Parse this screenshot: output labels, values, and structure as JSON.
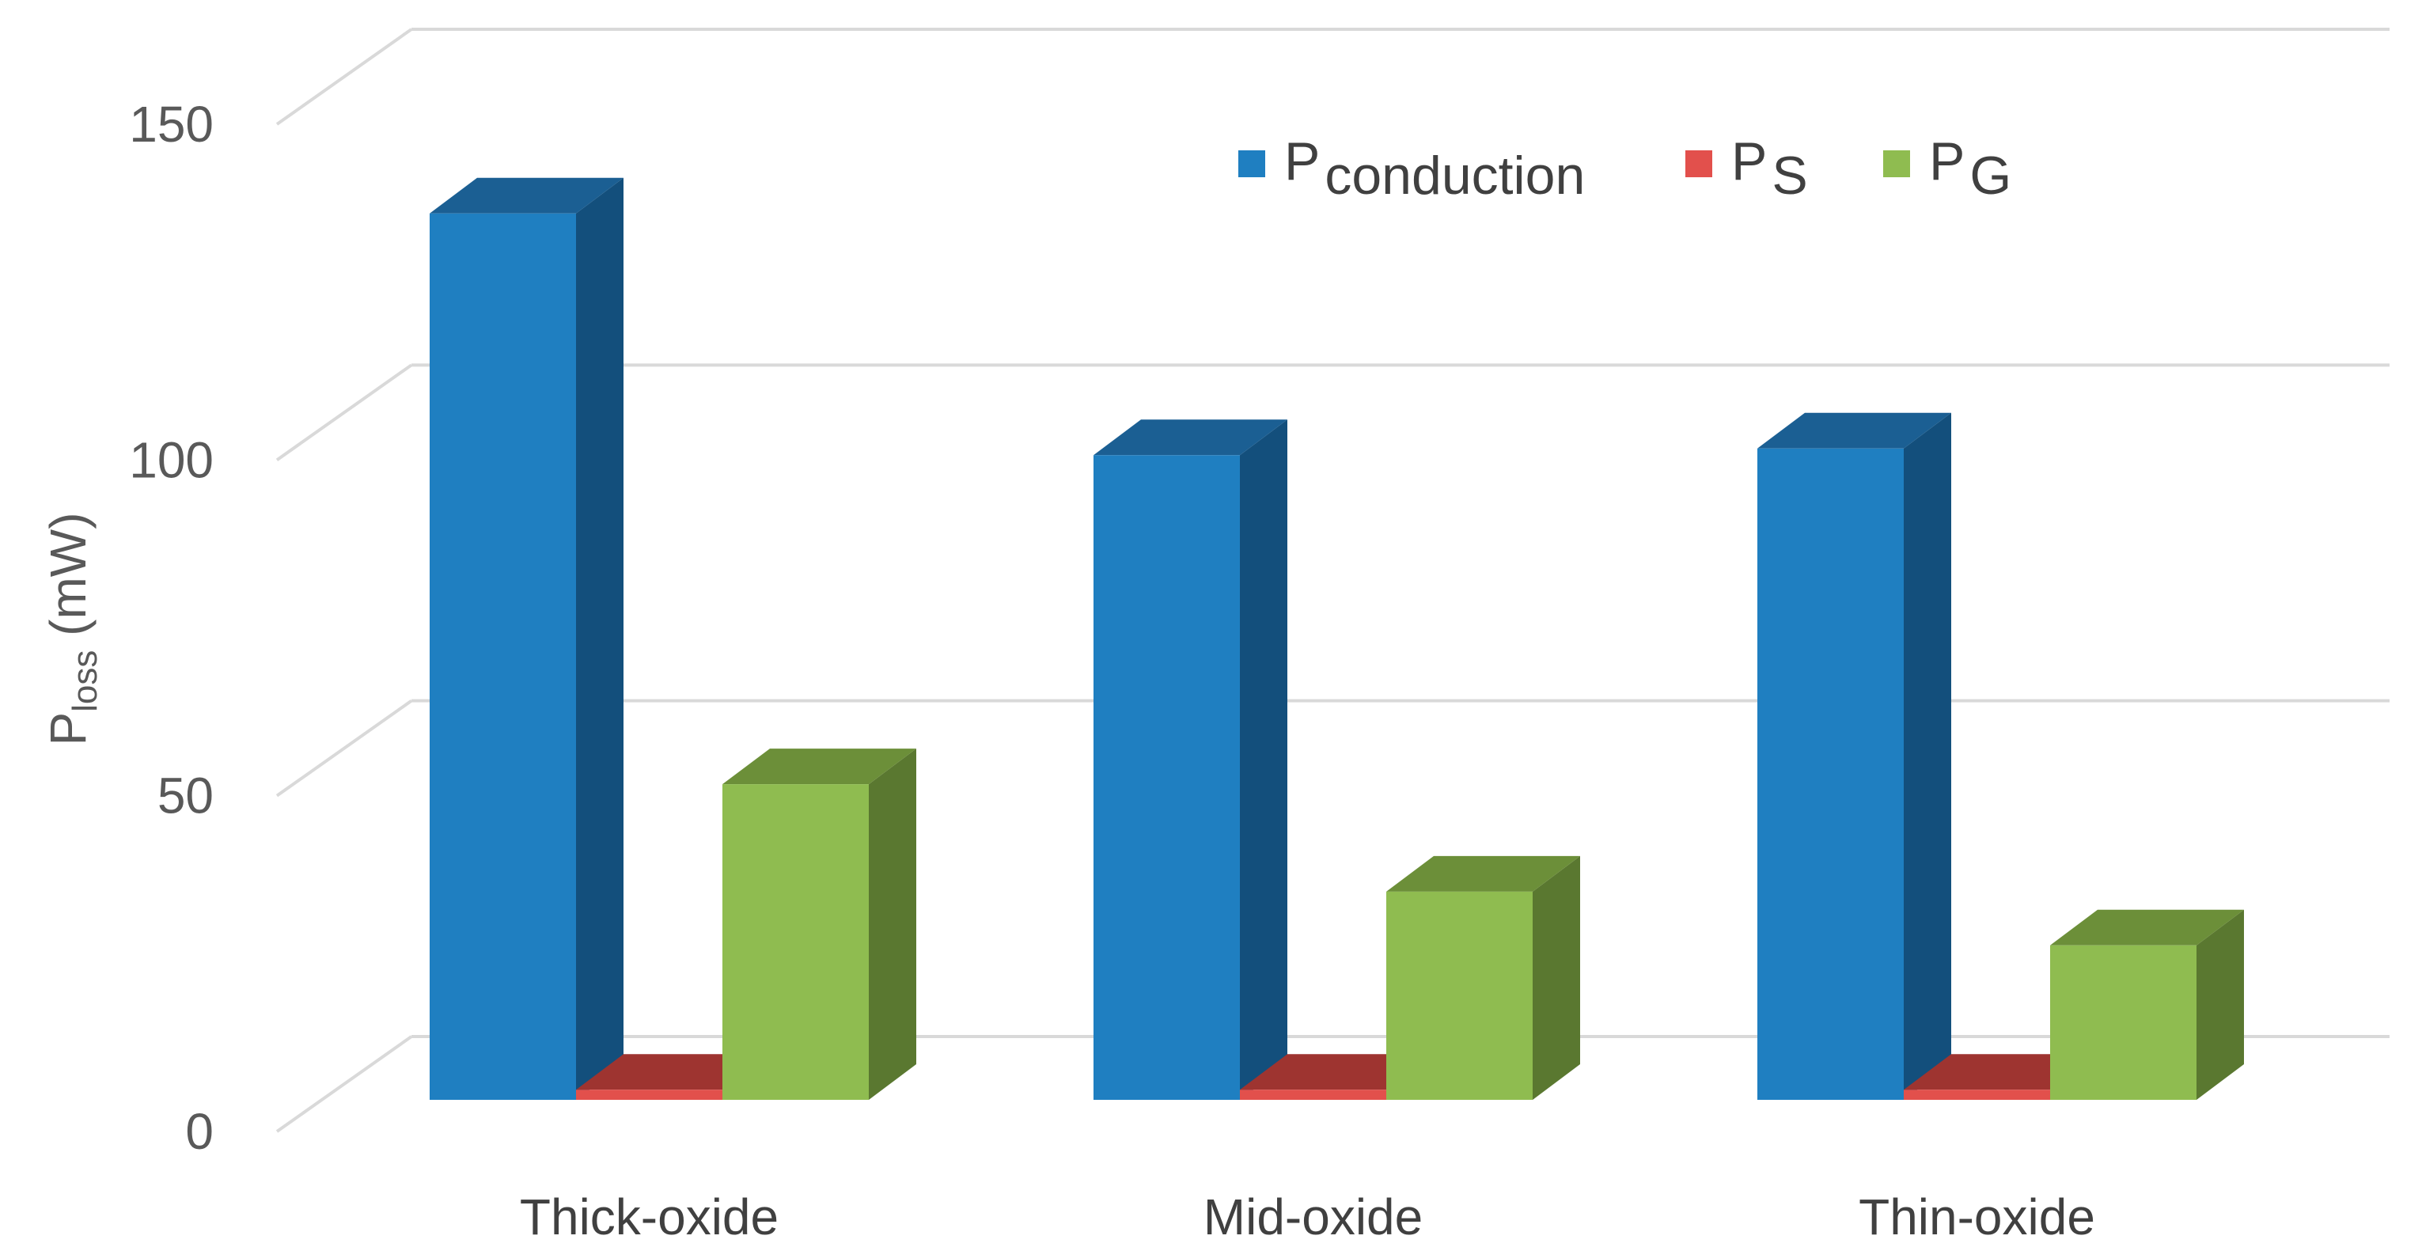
{
  "chart_data": {
    "type": "bar",
    "style": "3d-clustered-column",
    "title": "",
    "xlabel": "",
    "ylabel": {
      "main": "P",
      "sub": "loss",
      "unit": " (mW)"
    },
    "ylim": [
      0,
      150
    ],
    "yticks": [
      "0",
      "50",
      "100",
      "150"
    ],
    "grid": true,
    "legend_position": "top-right",
    "categories": [
      "Thick-oxide",
      "Mid-oxide",
      "Thin-oxide"
    ],
    "series": [
      {
        "name": "P",
        "name_sub": "conduction",
        "values": [
          132,
          96,
          97
        ],
        "color": "#1f7fc1",
        "top": "#1b5f93",
        "side": "#134f7c"
      },
      {
        "name": "P",
        "name_sub": "S",
        "values": [
          1.5,
          1.5,
          1.5
        ],
        "color": "#e2504c",
        "top": "#9e3430",
        "side": "#8e2d2a"
      },
      {
        "name": "P",
        "name_sub": "G",
        "values": [
          47,
          31,
          23
        ],
        "color": "#8fbc50",
        "top": "#6c8f39",
        "side": "#5a7830"
      }
    ]
  }
}
